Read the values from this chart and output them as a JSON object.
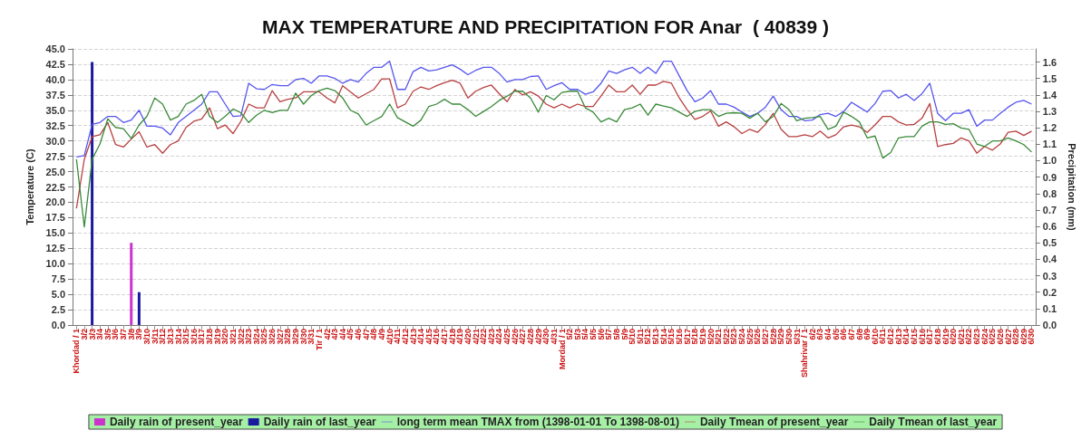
{
  "chart_data": {
    "type": "line",
    "title": "MAX TEMPERATURE AND PRECIPITATION FOR Anar  ( 40839 )",
    "ylabel": "Temperature (C)",
    "y2label": "Precipitation (mm)",
    "categories": [
      "Khordad / 1",
      "3/2",
      "3/3",
      "3/4",
      "3/5",
      "3/6",
      "3/7",
      "3/8",
      "3/9",
      "3/10",
      "3/11",
      "3/12",
      "3/13",
      "3/14",
      "3/15",
      "3/16",
      "3/17",
      "3/18",
      "3/19",
      "3/20",
      "3/21",
      "3/22",
      "3/23",
      "3/24",
      "3/25",
      "3/26",
      "3/27",
      "3/28",
      "3/29",
      "3/30",
      "3/31",
      "Tir / 1",
      "4/2",
      "4/3",
      "4/4",
      "4/5",
      "4/6",
      "4/7",
      "4/8",
      "4/9",
      "4/10",
      "4/11",
      "4/12",
      "4/13",
      "4/14",
      "4/15",
      "4/16",
      "4/17",
      "4/18",
      "4/19",
      "4/20",
      "4/21",
      "4/22",
      "4/23",
      "4/24",
      "4/25",
      "4/26",
      "4/27",
      "4/28",
      "4/29",
      "4/30",
      "4/31",
      "Mordad / 1",
      "5/2",
      "5/3",
      "5/4",
      "5/5",
      "5/6",
      "5/7",
      "5/8",
      "5/9",
      "5/10",
      "5/11",
      "5/12",
      "5/13",
      "5/14",
      "5/15",
      "5/16",
      "5/17",
      "5/18",
      "5/19",
      "5/20",
      "5/21",
      "5/22",
      "5/23",
      "5/24",
      "5/25",
      "5/26",
      "5/27",
      "5/28",
      "5/29",
      "5/30",
      "5/31",
      "Shahrivar / 1",
      "6/2",
      "6/3",
      "6/4",
      "6/5",
      "6/6",
      "6/7",
      "6/8",
      "6/9",
      "6/10",
      "6/11",
      "6/12",
      "6/13",
      "6/14",
      "6/15",
      "6/16",
      "6/17",
      "6/18",
      "6/19",
      "6/20",
      "6/21",
      "6/22",
      "6/23",
      "6/24",
      "6/25",
      "6/26",
      "6/27",
      "6/28",
      "6/29",
      "6/30"
    ],
    "series": [
      {
        "name": "Daily rain of present_year",
        "type": "bar",
        "axis": "y2",
        "color": "#cc33cc",
        "values": [
          null,
          null,
          null,
          null,
          null,
          null,
          null,
          0.5,
          null,
          null,
          null,
          null,
          null,
          null,
          null,
          null,
          null,
          null,
          null,
          null,
          null,
          null,
          null,
          null,
          null,
          null,
          null,
          null,
          null,
          null,
          null,
          null,
          null,
          null,
          null,
          null,
          null,
          null,
          null,
          null,
          null,
          null,
          null,
          null,
          null,
          null,
          null,
          null,
          null,
          null,
          null,
          null,
          null,
          null,
          null,
          null,
          null,
          null,
          null,
          null,
          null,
          null,
          null,
          null,
          null,
          null,
          null,
          null,
          null,
          null,
          null,
          null,
          null,
          null,
          null,
          null,
          null,
          null,
          null,
          null,
          null,
          null,
          null,
          null,
          null,
          null,
          null,
          null,
          null,
          null,
          null,
          null,
          null,
          null,
          null,
          null,
          null,
          null,
          null,
          null,
          null,
          null,
          null,
          null,
          null,
          null,
          null,
          null,
          null,
          null,
          null,
          null,
          null,
          null,
          null,
          null,
          null,
          null,
          null,
          null,
          null,
          null,
          null
        ]
      },
      {
        "name": "Daily rain of last_year",
        "type": "bar",
        "axis": "y2",
        "color": "#1a1a9e",
        "values": [
          null,
          null,
          1.6,
          null,
          null,
          null,
          null,
          null,
          0.2,
          null,
          null,
          null,
          null,
          null,
          null,
          null,
          null,
          null,
          null,
          null,
          null,
          null,
          null,
          null,
          null,
          null,
          null,
          null,
          null,
          null,
          null,
          null,
          null,
          null,
          null,
          null,
          null,
          null,
          null,
          null,
          null,
          null,
          null,
          null,
          null,
          null,
          null,
          null,
          null,
          null,
          null,
          null,
          null,
          null,
          null,
          null,
          null,
          null,
          null,
          null,
          null,
          null,
          null,
          null,
          null,
          null,
          null,
          null,
          null,
          null,
          null,
          null,
          null,
          null,
          null,
          null,
          null,
          null,
          null,
          null,
          null,
          null,
          null,
          null,
          null,
          null,
          null,
          null,
          null,
          null,
          null,
          null,
          null,
          null,
          null,
          null,
          null,
          null,
          null,
          null,
          null,
          null,
          null,
          null,
          null,
          null,
          null,
          null,
          null,
          null,
          null,
          null,
          null,
          null,
          null,
          null,
          null,
          null,
          null,
          null,
          null,
          null,
          null
        ]
      },
      {
        "name": "long term mean TMAX from (1398-01-01 To 1398-08-01)",
        "color": "#5555ee",
        "values": [
          27.4,
          27.6,
          32.7,
          33.0,
          34.0,
          34.0,
          33.0,
          33.4,
          35.0,
          32.4,
          32.4,
          32.1,
          31.0,
          33.0,
          34.0,
          35.0,
          36.0,
          38.0,
          38.0,
          36.0,
          34.0,
          34.1,
          39.4,
          38.5,
          38.4,
          39.2,
          39.0,
          39.0,
          40.0,
          40.2,
          39.4,
          40.6,
          40.6,
          40.2,
          39.4,
          40.0,
          39.6,
          41.0,
          42.0,
          42.0,
          43.0,
          38.4,
          38.4,
          41.3,
          42.0,
          41.4,
          41.6,
          42.0,
          42.4,
          41.7,
          40.8,
          41.5,
          42.0,
          42.0,
          41.0,
          39.6,
          40.0,
          40.0,
          40.5,
          40.6,
          38.4,
          39.0,
          39.5,
          38.4,
          38.4,
          37.6,
          38.0,
          39.4,
          41.4,
          41.0,
          41.6,
          42.0,
          41.0,
          42.0,
          41.0,
          43.0,
          43.0,
          40.6,
          38.2,
          36.4,
          37.0,
          38.2,
          36.0,
          36.0,
          35.5,
          34.7,
          34.0,
          34.5,
          35.5,
          37.3,
          35.1,
          34.0,
          34.0,
          33.3,
          33.4,
          34.3,
          34.5,
          34.0,
          34.8,
          36.3,
          35.5,
          34.7,
          36.1,
          38.1,
          38.2,
          37.0,
          37.6,
          36.6,
          37.7,
          39.4,
          34.5,
          33.3,
          34.5,
          34.5,
          35.1,
          32.4,
          33.4,
          33.4,
          34.5,
          35.5,
          36.3,
          36.6,
          36.0
        ]
      },
      {
        "name": "Daily Tmean of present_year",
        "color": "#b84040",
        "values": [
          19.0,
          27.0,
          30.7,
          31.0,
          33.0,
          29.4,
          29.0,
          30.3,
          31.5,
          29.0,
          29.4,
          28.0,
          29.4,
          30.0,
          32.2,
          33.2,
          33.6,
          35.4,
          32.0,
          32.6,
          31.2,
          33.2,
          36.0,
          35.4,
          35.4,
          38.2,
          36.4,
          36.8,
          37.0,
          38.0,
          38.0,
          38.0,
          37.0,
          36.2,
          39.0,
          38.0,
          37.0,
          37.7,
          38.4,
          40.1,
          40.1,
          35.4,
          36.0,
          38.1,
          38.8,
          38.4,
          39.0,
          39.5,
          39.9,
          39.4,
          37.0,
          38.1,
          38.7,
          39.1,
          37.7,
          36.4,
          38.4,
          37.5,
          38.0,
          37.3,
          36.0,
          35.4,
          36.0,
          35.4,
          36.0,
          35.6,
          35.6,
          37.3,
          39.1,
          38.0,
          38.0,
          39.1,
          37.6,
          39.1,
          39.1,
          39.7,
          39.4,
          37.0,
          35.1,
          33.5,
          34.0,
          34.9,
          32.4,
          33.1,
          32.3,
          31.2,
          31.9,
          31.4,
          32.7,
          34.5,
          31.9,
          30.7,
          30.7,
          31.0,
          30.7,
          31.6,
          30.5,
          31.0,
          32.3,
          32.6,
          32.3,
          31.4,
          32.6,
          34.0,
          34.0,
          33.1,
          32.6,
          32.7,
          33.7,
          36.1,
          29.1,
          29.4,
          29.6,
          30.5,
          30.0,
          28.0,
          29.1,
          28.5,
          29.5,
          31.4,
          31.6,
          30.9,
          31.6
        ]
      },
      {
        "name": "Daily Tmean of last_year",
        "color": "#3a8a3a",
        "values": [
          27.0,
          16.0,
          27.0,
          29.5,
          33.6,
          32.2,
          32.0,
          30.4,
          32.6,
          34.0,
          37.0,
          36.0,
          33.4,
          34.0,
          36.0,
          36.6,
          37.6,
          34.0,
          33.0,
          34.0,
          35.2,
          34.6,
          33.0,
          34.2,
          35.0,
          34.6,
          35.0,
          35.0,
          37.8,
          36.0,
          37.4,
          38.2,
          38.6,
          38.2,
          37.0,
          35.0,
          34.4,
          32.6,
          33.3,
          34.0,
          36.0,
          33.8,
          33.1,
          32.4,
          33.4,
          35.6,
          36.0,
          36.8,
          36.0,
          36.0,
          35.1,
          34.0,
          34.8,
          35.6,
          36.6,
          37.3,
          38.1,
          38.1,
          37.0,
          34.7,
          37.4,
          36.7,
          37.9,
          38.1,
          38.1,
          35.4,
          34.7,
          33.1,
          33.7,
          33.1,
          35.1,
          35.4,
          36.0,
          34.2,
          36.0,
          35.7,
          35.4,
          34.7,
          34.0,
          34.8,
          35.1,
          35.1,
          34.0,
          34.5,
          34.6,
          34.5,
          33.7,
          34.5,
          33.1,
          34.0,
          36.1,
          35.1,
          33.3,
          33.7,
          33.8,
          34.0,
          31.9,
          32.4,
          34.7,
          34.0,
          33.1,
          30.5,
          30.8,
          27.2,
          28.1,
          30.5,
          30.7,
          30.7,
          32.4,
          33.1,
          33.1,
          32.7,
          32.8,
          32.1,
          31.9,
          29.5,
          29.1,
          30.0,
          30.0,
          30.5,
          30.0,
          29.4,
          28.2
        ]
      }
    ],
    "ylim": [
      0,
      45
    ],
    "yticks": [
      {
        "value": 0,
        "label": "0.0"
      },
      {
        "value": 2.5,
        "label": "2.5"
      },
      {
        "value": 5,
        "label": "5.0"
      },
      {
        "value": 7.5,
        "label": "7.5"
      },
      {
        "value": 10,
        "label": "10.0"
      },
      {
        "value": 12.5,
        "label": "12.5"
      },
      {
        "value": 15,
        "label": "15.0"
      },
      {
        "value": 17.5,
        "label": "17.5"
      },
      {
        "value": 20,
        "label": "20.0"
      },
      {
        "value": 22.5,
        "label": "22.5"
      },
      {
        "value": 25,
        "label": "25.0"
      },
      {
        "value": 27.5,
        "label": "27.5"
      },
      {
        "value": 30,
        "label": "30.0"
      },
      {
        "value": 32.5,
        "label": "32.5"
      },
      {
        "value": 35,
        "label": "35.0"
      },
      {
        "value": 37.5,
        "label": "37.5"
      },
      {
        "value": 40,
        "label": "40.0"
      },
      {
        "value": 42.5,
        "label": "42.5"
      },
      {
        "value": 45,
        "label": "45.0"
      }
    ],
    "y2lim": [
      0,
      1.68
    ],
    "y2ticks": [
      {
        "value": 0,
        "label": "0.0"
      },
      {
        "value": 0.1,
        "label": "0.1"
      },
      {
        "value": 0.2,
        "label": "0.2"
      },
      {
        "value": 0.3,
        "label": "0.3"
      },
      {
        "value": 0.4,
        "label": "0.4"
      },
      {
        "value": 0.5,
        "label": "0.5"
      },
      {
        "value": 0.6,
        "label": "0.6"
      },
      {
        "value": 0.7,
        "label": "0.7"
      },
      {
        "value": 0.8,
        "label": "0.8"
      },
      {
        "value": 0.9,
        "label": "0.9"
      },
      {
        "value": 1,
        "label": "1.0"
      },
      {
        "value": 1.1,
        "label": "1.1"
      },
      {
        "value": 1.2,
        "label": "1.2"
      },
      {
        "value": 1.3,
        "label": "1.3"
      },
      {
        "value": 1.4,
        "label": "1.4"
      },
      {
        "value": 1.5,
        "label": "1.5"
      },
      {
        "value": 1.6,
        "label": "1.6"
      }
    ],
    "grid": "y",
    "legend": "bottom",
    "marker": "none"
  }
}
